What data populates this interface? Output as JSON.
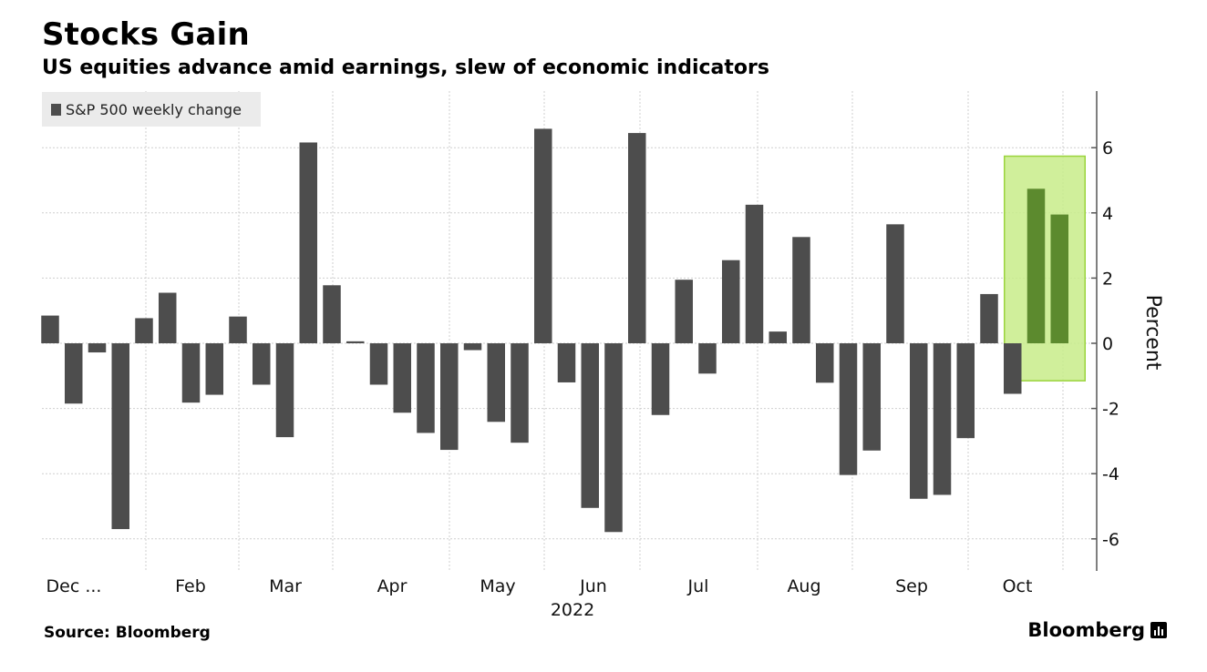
{
  "header": {
    "title": "Stocks Gain",
    "subtitle": "US equities advance amid earnings, slew of economic indicators"
  },
  "footer": {
    "source": "Source: Bloomberg",
    "brand": "Bloomberg"
  },
  "colors": {
    "bar": "#4d4d4d",
    "bar_highlight": "#5c8a2e",
    "highlight_fill": "#c8ec8a",
    "highlight_stroke": "#9ad43c",
    "grid": "#cfcfcf"
  },
  "chart_data": {
    "type": "bar",
    "title": "Stocks Gain",
    "subtitle": "US equities advance amid earnings, slew of economic indicators",
    "ylabel": "Percent",
    "ylim": [
      -7,
      7.8
    ],
    "yticks": [
      -6,
      -4,
      -2,
      0,
      2,
      4,
      6
    ],
    "legend": {
      "placement": "top-left",
      "entries": [
        "S&P 500 weekly change"
      ]
    },
    "grid": true,
    "x_tick_labels": [
      "Dec ...",
      "Feb",
      "Mar",
      "Apr",
      "May",
      "Jun",
      "Jul",
      "Aug",
      "Sep",
      "Oct"
    ],
    "x_year_label": "2022",
    "series": [
      {
        "name": "S&P 500 weekly change",
        "values": [
          0.85,
          -1.85,
          -0.28,
          -5.7,
          0.77,
          1.55,
          -1.82,
          -1.58,
          0.82,
          -1.27,
          -2.88,
          6.16,
          1.78,
          0.06,
          -1.27,
          -2.13,
          -2.75,
          -3.27,
          -0.21,
          -2.41,
          -3.05,
          6.58,
          -1.2,
          -5.05,
          -5.79,
          6.45,
          -2.2,
          1.95,
          -0.93,
          2.55,
          4.25,
          0.36,
          3.26,
          -1.21,
          -4.04,
          -3.29,
          3.65,
          -4.77,
          -4.65,
          -2.91,
          1.51,
          -1.55,
          4.74,
          3.95
        ]
      }
    ],
    "highlight": {
      "indices": [
        41,
        42,
        43
      ],
      "color": "#c8ec8a"
    }
  }
}
